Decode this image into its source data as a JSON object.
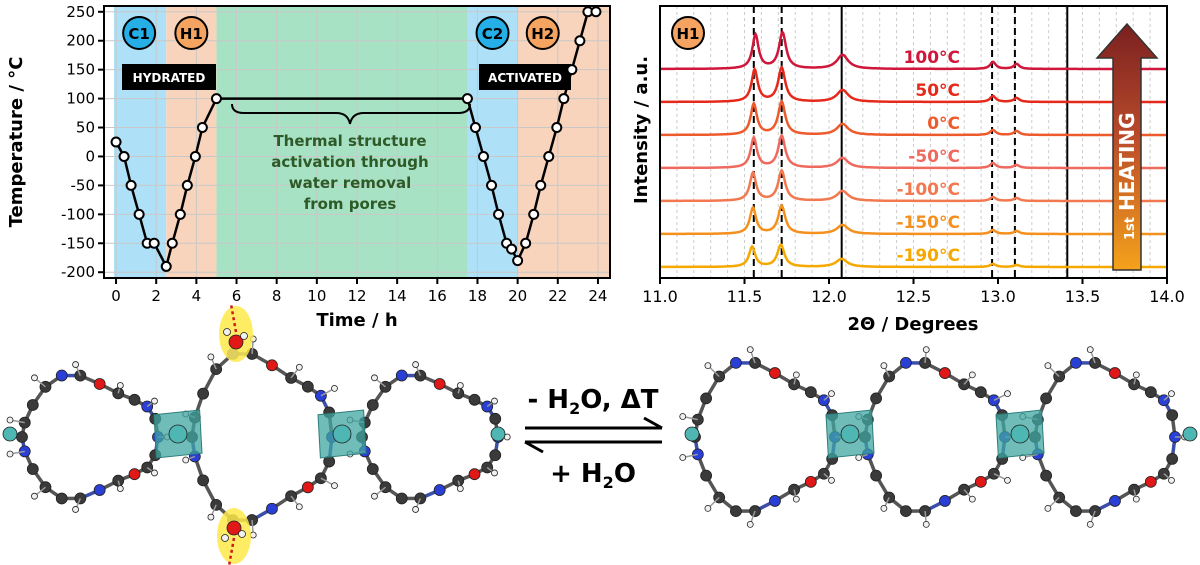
{
  "chart_data": [
    {
      "type": "line",
      "xlabel": "Time / h",
      "ylabel": "Temperature / °C",
      "xlim": [
        -0.6,
        24.6
      ],
      "ylim": [
        -210,
        260
      ],
      "x_ticks": [
        "0",
        "2",
        "4",
        "6",
        "8",
        "10",
        "12",
        "14",
        "16",
        "18",
        "20",
        "22",
        "24"
      ],
      "y_ticks": [
        "250",
        "200",
        "150",
        "100",
        "50",
        "0",
        "-50",
        "-100",
        "-150",
        "-200"
      ],
      "stages": [
        {
          "label": "C1",
          "x": [
            -0.1,
            2.5
          ],
          "color": "#aee0f7",
          "badge_color": "#26aee6"
        },
        {
          "label": "H1",
          "x": [
            2.5,
            5.0
          ],
          "color": "#f9d4bc",
          "badge_color": "#f4a460"
        },
        {
          "label": "",
          "x": [
            5.0,
            17.5
          ],
          "color": "#a8e2c4",
          "badge_color": ""
        },
        {
          "label": "C2",
          "x": [
            17.5,
            20.0
          ],
          "color": "#aee0f7",
          "badge_color": "#26aee6"
        },
        {
          "label": "H2",
          "x": [
            20.0,
            24.6
          ],
          "color": "#f9d4bc",
          "badge_color": "#f4a460"
        }
      ],
      "series": [
        {
          "x": [
            0,
            0.4,
            0.75,
            1.15,
            1.55,
            1.9,
            2.5,
            2.8,
            3.2,
            3.55,
            3.95,
            4.3,
            5.0,
            17.5,
            17.9,
            18.3,
            18.7,
            19.05,
            19.45,
            19.7,
            20.0,
            20.4,
            20.8,
            21.15,
            21.55,
            21.95,
            22.3,
            22.7,
            23.1,
            23.5,
            23.9
          ],
          "y": [
            25,
            0,
            -50,
            -100,
            -150,
            -150,
            -190,
            -150,
            -100,
            -50,
            0,
            50,
            100,
            100,
            50,
            0,
            -50,
            -100,
            -150,
            -160,
            -180,
            -150,
            -100,
            -50,
            0,
            50,
            100,
            150,
            200,
            250,
            250
          ]
        }
      ],
      "series_color": "#000000",
      "annotations": {
        "hydrated": "HYDRATED",
        "activated": "ACTIVATED",
        "activation_text": [
          "Thermal structure",
          "activation through",
          "water removal",
          "from pores"
        ],
        "activation_color": "#2d5a27"
      }
    },
    {
      "type": "line",
      "xlabel": "2Θ / Degrees",
      "ylabel": "Intensity / a.u.",
      "xlim": [
        11.0,
        14.0
      ],
      "x_ticks": [
        "11.0",
        "11.5",
        "12.0",
        "12.5",
        "13.0",
        "13.5",
        "14.0"
      ],
      "stage_label": "H1",
      "stage_badge_color": "#f4a460",
      "dashed_lines": [
        11.555,
        11.72,
        12.965,
        13.1
      ],
      "solid_lines": [
        12.075,
        13.41
      ],
      "arrow_text": "HEATING",
      "arrow_superscript": "1st",
      "series": [
        {
          "name": "-190°C",
          "color": "#f5a800",
          "peaks": [
            [
              11.545,
              20,
              0.022
            ],
            [
              11.715,
              22,
              0.025
            ],
            [
              12.075,
              8,
              0.04
            ],
            [
              12.97,
              3,
              0.02
            ],
            [
              13.11,
              2,
              0.02
            ]
          ]
        },
        {
          "name": "-150°C",
          "color": "#f4911e",
          "peaks": [
            [
              11.55,
              26,
              0.022
            ],
            [
              11.72,
              28,
              0.025
            ],
            [
              12.08,
              9,
              0.04
            ],
            [
              12.97,
              4,
              0.02
            ],
            [
              13.11,
              3,
              0.02
            ]
          ]
        },
        {
          "name": "-100°C",
          "color": "#f27850",
          "peaks": [
            [
              11.55,
              28,
              0.022
            ],
            [
              11.72,
              30,
              0.025
            ],
            [
              12.08,
              10,
              0.04
            ],
            [
              12.97,
              4,
              0.02
            ],
            [
              13.11,
              3,
              0.02
            ]
          ]
        },
        {
          "name": "-50°C",
          "color": "#ef6a5e",
          "peaks": [
            [
              11.555,
              30,
              0.022
            ],
            [
              11.72,
              32,
              0.025
            ],
            [
              12.08,
              10,
              0.04
            ],
            [
              12.97,
              5,
              0.02
            ],
            [
              13.11,
              3,
              0.02
            ]
          ]
        },
        {
          "name": "0°C",
          "color": "#ed5a2c",
          "peaks": [
            [
              11.555,
              31,
              0.022
            ],
            [
              11.72,
              33,
              0.025
            ],
            [
              12.08,
              11,
              0.04
            ],
            [
              12.97,
              5,
              0.02
            ],
            [
              13.11,
              4,
              0.02
            ]
          ]
        },
        {
          "name": "50°C",
          "color": "#e52a1c",
          "peaks": [
            [
              11.56,
              32,
              0.022
            ],
            [
              11.72,
              34,
              0.025
            ],
            [
              12.08,
              12,
              0.04
            ],
            [
              12.97,
              6,
              0.02
            ],
            [
              13.11,
              4,
              0.02
            ]
          ]
        },
        {
          "name": "100°C",
          "color": "#d0163a",
          "peaks": [
            [
              11.565,
              34,
              0.022
            ],
            [
              11.725,
              36,
              0.025
            ],
            [
              12.08,
              14,
              0.04
            ],
            [
              12.97,
              7,
              0.02
            ],
            [
              13.11,
              5,
              0.02
            ]
          ]
        }
      ]
    }
  ],
  "reaction": {
    "forward": "- H",
    "forward_tail": "O, ΔT",
    "backward": "+ H",
    "backward_tail": "O",
    "subscript": "2"
  },
  "molecules": {
    "metal_color": "#4fb7b3",
    "polyhedron_color": "#3fa6a1",
    "carbon_color": "#3a3a3a",
    "nitrogen_color": "#2a3fd6",
    "oxygen_color": "#e01818",
    "hydrogen_color": "#f0f0f0",
    "water_highlight_color": "#ffe94a"
  }
}
